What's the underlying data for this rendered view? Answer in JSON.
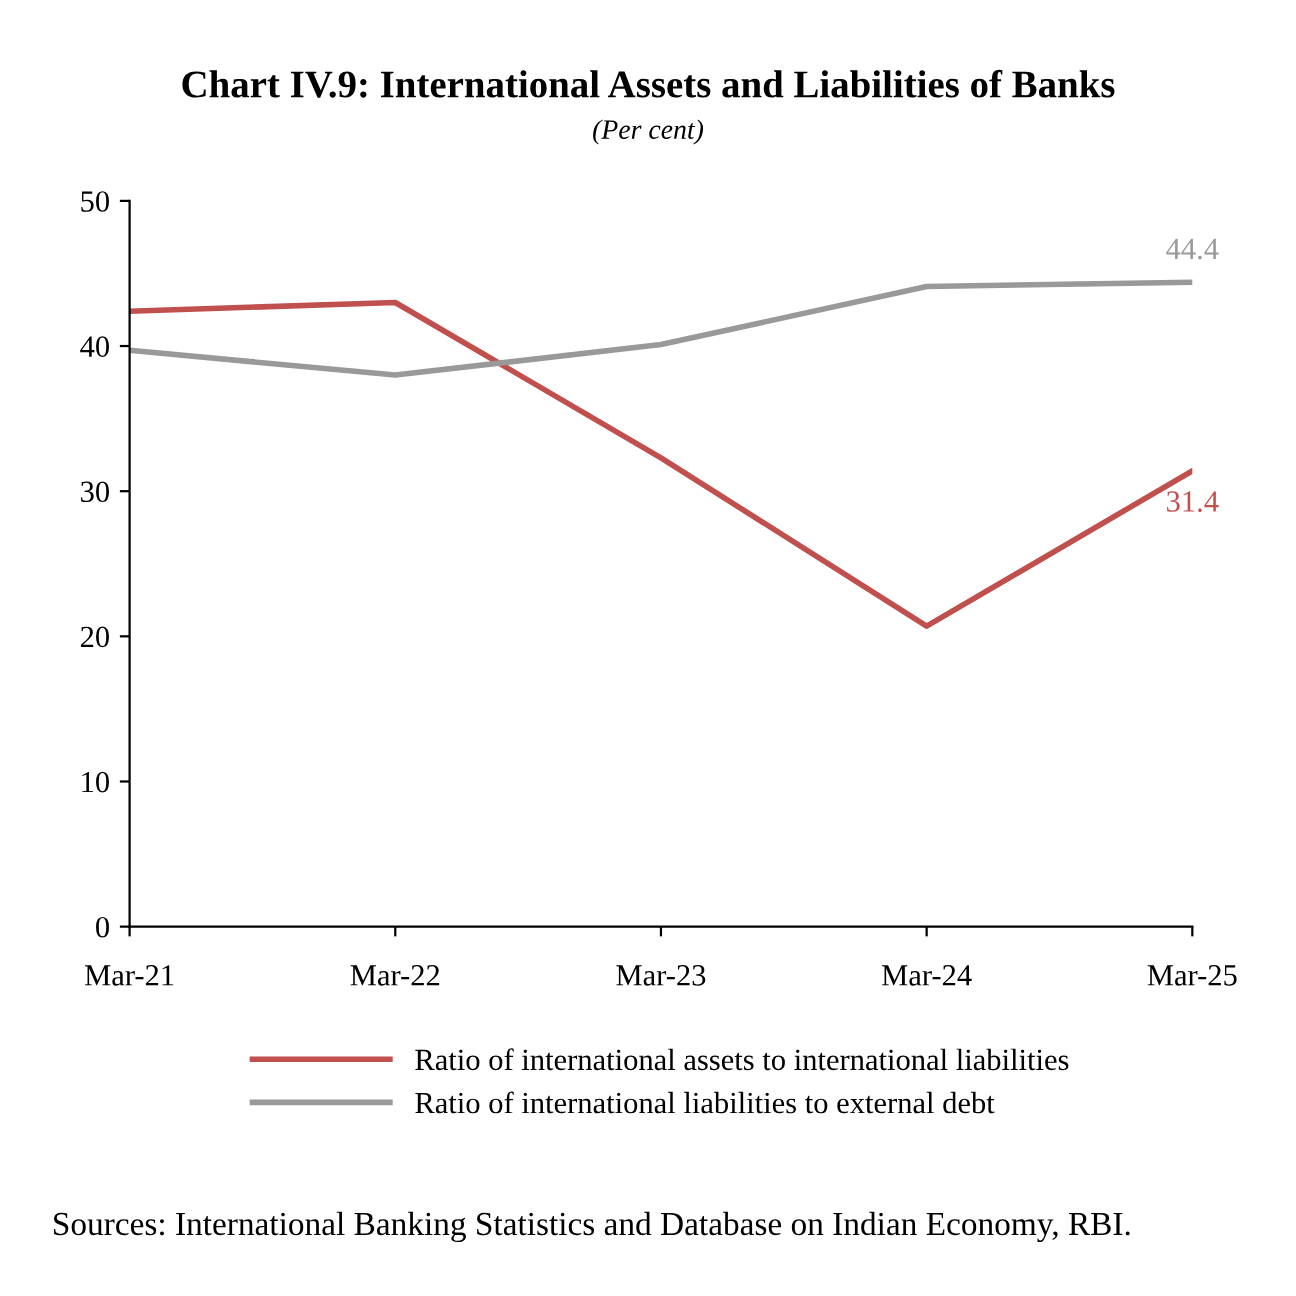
{
  "chart_data": {
    "type": "line",
    "title": "Chart IV.9: International Assets and Liabilities of Banks",
    "subtitle": "(Per cent)",
    "categories": [
      "Mar-21",
      "Mar-22",
      "Mar-23",
      "Mar-24",
      "Mar-25"
    ],
    "series": [
      {
        "name": "Ratio of international assets to international liabilities",
        "color": "#c0504d",
        "values": [
          42.4,
          43.0,
          32.3,
          20.7,
          31.4
        ],
        "value_labels": [
          null,
          null,
          null,
          null,
          "31.4"
        ]
      },
      {
        "name": "Ratio of international liabilities to external debt",
        "color": "#999999",
        "values": [
          39.7,
          38.0,
          40.1,
          44.1,
          44.4
        ],
        "value_labels": [
          null,
          null,
          null,
          null,
          "44.4"
        ]
      }
    ],
    "ylim": [
      0,
      50
    ],
    "yticks": [
      0,
      10,
      20,
      30,
      40,
      50
    ],
    "grid": false,
    "legend": "bottom",
    "marker": "none",
    "line_style": "solid",
    "annotations": [
      "Sources: International Banking Statistics and Database on Indian Economy, RBI."
    ]
  }
}
